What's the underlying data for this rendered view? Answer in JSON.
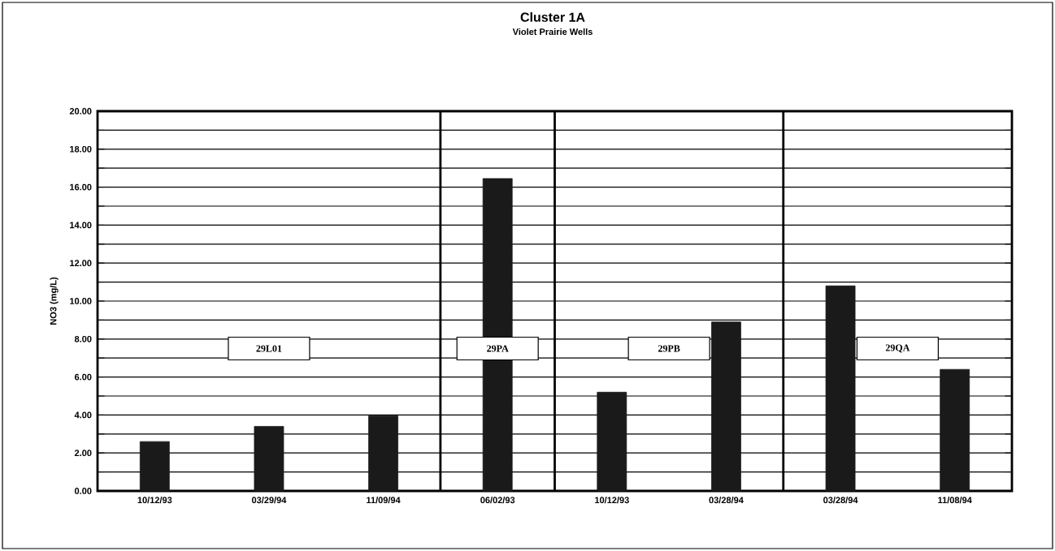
{
  "chart_data": {
    "type": "bar",
    "title": "Cluster 1A",
    "subtitle": "Violet Prairie Wells",
    "ylabel": "NO3 (mg/L)",
    "categories": [
      "10/12/93",
      "03/29/94",
      "11/09/94",
      "06/02/93",
      "10/12/93",
      "03/28/94",
      "03/28/94",
      "11/08/94"
    ],
    "values": [
      2.6,
      3.4,
      3.95,
      16.45,
      5.2,
      8.9,
      10.8,
      6.4
    ],
    "color": "#1a1a1a",
    "ylim": [
      0,
      20
    ],
    "yticks": [
      {
        "value": 0,
        "label": "0.00"
      },
      {
        "value": 1,
        "label": null
      },
      {
        "value": 2,
        "label": "2.00"
      },
      {
        "value": 3,
        "label": null
      },
      {
        "value": 4,
        "label": "4.00"
      },
      {
        "value": 5,
        "label": null
      },
      {
        "value": 6,
        "label": "6.00"
      },
      {
        "value": 7,
        "label": null
      },
      {
        "value": 8,
        "label": "8.00"
      },
      {
        "value": 9,
        "label": null
      },
      {
        "value": 10,
        "label": "10.00"
      },
      {
        "value": 11,
        "label": null
      },
      {
        "value": 12,
        "label": "12.00"
      },
      {
        "value": 13,
        "label": null
      },
      {
        "value": 14,
        "label": "14.00"
      },
      {
        "value": 15,
        "label": null
      },
      {
        "value": 16,
        "label": "16.00"
      },
      {
        "value": 17,
        "label": null
      },
      {
        "value": 18,
        "label": "18.00"
      },
      {
        "value": 19,
        "label": null
      },
      {
        "value": 20,
        "label": "20.00"
      }
    ],
    "grid": "y",
    "annotations": [
      "29L01",
      "29PA",
      "29PB",
      "29QA"
    ]
  }
}
